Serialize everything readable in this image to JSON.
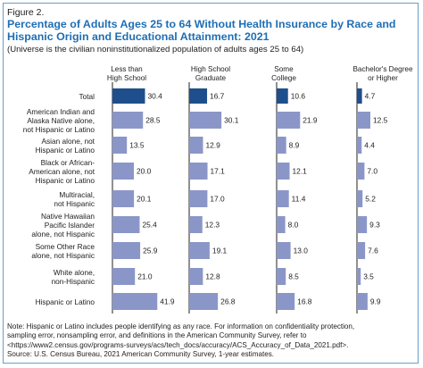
{
  "figure_label": "Figure 2.",
  "chart_data": {
    "type": "bar",
    "orientation": "horizontal",
    "title": "Percentage of Adults Ages 25 to 64 Without Health Insurance by Race and Hispanic Origin and Educational Attainment: 2021",
    "subtitle": "(Universe is the civilian noninstitutionalized population of adults ages 25 to 64)",
    "categories": [
      "Total",
      "American Indian and Alaska Native alone, not Hispanic or Latino",
      "Asian alone, not Hispanic or Latino",
      "Black or African-American alone, not Hispanic or Latino",
      "Multiracial, not Hispanic",
      "Native Hawaiian Pacific Islander alone, not Hispanic",
      "Some Other Race alone, not Hispanic",
      "White alone, non-Hispanic",
      "Hispanic or Latino"
    ],
    "category_lines": [
      [
        "Total"
      ],
      [
        "American Indian and",
        "Alaska Native alone,",
        "not Hispanic or Latino"
      ],
      [
        "Asian alone, not",
        "Hispanic or Latino"
      ],
      [
        "Black or African-",
        "American alone, not",
        "Hispanic or Latino"
      ],
      [
        "Multiracial,",
        "not Hispanic"
      ],
      [
        "Native Hawaiian",
        "Pacific Islander",
        "alone, not Hispanic"
      ],
      [
        "Some Other Race",
        "alone, not Hispanic"
      ],
      [
        "White alone,",
        "non-Hispanic"
      ],
      [
        "Hispanic or Latino"
      ]
    ],
    "series": [
      {
        "name": "Less than High School",
        "name_lines": [
          "Less than",
          "High School"
        ],
        "values": [
          30.4,
          28.5,
          13.5,
          20.0,
          20.1,
          25.4,
          25.9,
          21.0,
          41.9
        ],
        "labels": [
          "30.4",
          "28.5",
          "13.5",
          "20.0",
          "20.1",
          "25.4",
          "25.9",
          "21.0",
          "41.9"
        ]
      },
      {
        "name": "High School Graduate",
        "name_lines": [
          "High School",
          "Graduate"
        ],
        "values": [
          16.7,
          30.1,
          12.9,
          17.1,
          17.0,
          12.3,
          19.1,
          12.8,
          26.8
        ],
        "labels": [
          "16.7",
          "30.1",
          "12.9",
          "17.1",
          "17.0",
          "12.3",
          "19.1",
          "12.8",
          "26.8"
        ]
      },
      {
        "name": "Some College",
        "name_lines": [
          "Some",
          "College"
        ],
        "values": [
          10.6,
          21.9,
          8.9,
          12.1,
          11.4,
          8.0,
          13.0,
          8.5,
          16.8
        ],
        "labels": [
          "10.6",
          "21.9",
          "8.9",
          "12.1",
          "11.4",
          "8.0",
          "13.0",
          "8.5",
          "16.8"
        ]
      },
      {
        "name": "Bachelor's Degree or Higher",
        "name_lines": [
          "Bachelor's Degree",
          "or Higher"
        ],
        "values": [
          4.7,
          12.5,
          4.4,
          7.0,
          5.2,
          9.3,
          7.6,
          3.5,
          9.9
        ],
        "labels": [
          "4.7",
          "12.5",
          "4.4",
          "7.0",
          "5.2",
          "9.3",
          "7.6",
          "3.5",
          "9.9"
        ]
      }
    ],
    "colors": {
      "highlight": "#1f4e8c",
      "bar": "#8b96c8",
      "axis": "#222222",
      "title": "#1f6eb5"
    }
  },
  "note_lines": [
    "Note: Hispanic or Latino includes people identifying as any race. For information on confidentiality protection,",
    "sampling error, nonsampling error, and definitions in the American Community Survey, refer to",
    "<https://www2.census.gov/programs-surveys/acs/tech_docs/accuracy/ACS_Accuracy_of_Data_2021.pdf>.",
    "Source: U.S. Census Bureau, 2021 American Community Survey, 1-year estimates."
  ]
}
